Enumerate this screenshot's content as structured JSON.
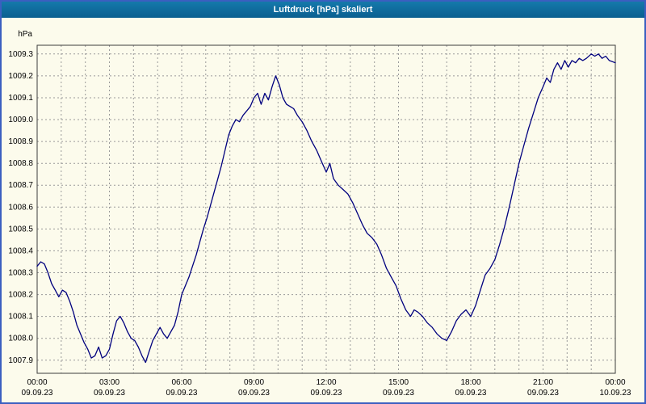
{
  "window": {
    "title": "Luftdruck [hPa] skaliert"
  },
  "colors": {
    "titlebar": "#0f6f9f",
    "window_border": "#3b5fc0",
    "background": "#fcfbec",
    "line": "#00007e",
    "grid": "#9a9a9a",
    "frame": "#3c3c3c",
    "text": "#000000"
  },
  "chart_data": {
    "type": "line",
    "title": "Luftdruck [hPa] skaliert",
    "xlabel": "",
    "ylabel": "hPa",
    "xlim": [
      0,
      24
    ],
    "ylim": [
      1007.84,
      1009.34
    ],
    "grid": true,
    "x_grid_step_hours": 1,
    "y_ticks": [
      1007.9,
      1008.0,
      1008.1,
      1008.2,
      1008.3,
      1008.4,
      1008.5,
      1008.6,
      1008.7,
      1008.8,
      1008.9,
      1009.0,
      1009.1,
      1009.2,
      1009.3
    ],
    "x_ticks": [
      {
        "hour": 0,
        "time": "00:00",
        "date": "09.09.23"
      },
      {
        "hour": 3,
        "time": "03:00",
        "date": "09.09.23"
      },
      {
        "hour": 6,
        "time": "06:00",
        "date": "09.09.23"
      },
      {
        "hour": 9,
        "time": "09:00",
        "date": "09.09.23"
      },
      {
        "hour": 12,
        "time": "12:00",
        "date": "09.09.23"
      },
      {
        "hour": 15,
        "time": "15:00",
        "date": "09.09.23"
      },
      {
        "hour": 18,
        "time": "18:00",
        "date": "09.09.23"
      },
      {
        "hour": 21,
        "time": "21:00",
        "date": "09.09.23"
      },
      {
        "hour": 24,
        "time": "00:00",
        "date": "10.09.23"
      }
    ],
    "series": [
      {
        "name": "Luftdruck",
        "unit": "hPa",
        "points": [
          [
            0.0,
            1008.33
          ],
          [
            0.15,
            1008.35
          ],
          [
            0.3,
            1008.34
          ],
          [
            0.45,
            1008.3
          ],
          [
            0.6,
            1008.25
          ],
          [
            0.75,
            1008.22
          ],
          [
            0.9,
            1008.19
          ],
          [
            1.05,
            1008.22
          ],
          [
            1.2,
            1008.21
          ],
          [
            1.35,
            1008.17
          ],
          [
            1.5,
            1008.12
          ],
          [
            1.65,
            1008.06
          ],
          [
            1.8,
            1008.02
          ],
          [
            1.95,
            1007.98
          ],
          [
            2.1,
            1007.95
          ],
          [
            2.25,
            1007.91
          ],
          [
            2.4,
            1007.92
          ],
          [
            2.55,
            1007.96
          ],
          [
            2.7,
            1007.91
          ],
          [
            2.85,
            1007.92
          ],
          [
            3.0,
            1007.95
          ],
          [
            3.15,
            1008.02
          ],
          [
            3.3,
            1008.08
          ],
          [
            3.45,
            1008.1
          ],
          [
            3.6,
            1008.07
          ],
          [
            3.75,
            1008.03
          ],
          [
            3.9,
            1008.0
          ],
          [
            4.05,
            1007.99
          ],
          [
            4.2,
            1007.96
          ],
          [
            4.35,
            1007.92
          ],
          [
            4.5,
            1007.89
          ],
          [
            4.65,
            1007.94
          ],
          [
            4.8,
            1007.99
          ],
          [
            4.95,
            1008.02
          ],
          [
            5.1,
            1008.05
          ],
          [
            5.25,
            1008.02
          ],
          [
            5.4,
            1008.0
          ],
          [
            5.55,
            1008.03
          ],
          [
            5.7,
            1008.06
          ],
          [
            5.85,
            1008.12
          ],
          [
            6.0,
            1008.2
          ],
          [
            6.15,
            1008.24
          ],
          [
            6.3,
            1008.28
          ],
          [
            6.45,
            1008.33
          ],
          [
            6.6,
            1008.38
          ],
          [
            6.75,
            1008.44
          ],
          [
            6.9,
            1008.5
          ],
          [
            7.05,
            1008.55
          ],
          [
            7.2,
            1008.61
          ],
          [
            7.35,
            1008.67
          ],
          [
            7.5,
            1008.73
          ],
          [
            7.65,
            1008.79
          ],
          [
            7.8,
            1008.86
          ],
          [
            7.95,
            1008.93
          ],
          [
            8.1,
            1008.97
          ],
          [
            8.25,
            1009.0
          ],
          [
            8.4,
            1008.99
          ],
          [
            8.55,
            1009.02
          ],
          [
            8.7,
            1009.04
          ],
          [
            8.85,
            1009.06
          ],
          [
            9.0,
            1009.1
          ],
          [
            9.15,
            1009.12
          ],
          [
            9.3,
            1009.07
          ],
          [
            9.45,
            1009.12
          ],
          [
            9.6,
            1009.09
          ],
          [
            9.75,
            1009.15
          ],
          [
            9.9,
            1009.2
          ],
          [
            10.05,
            1009.16
          ],
          [
            10.2,
            1009.1
          ],
          [
            10.35,
            1009.07
          ],
          [
            10.5,
            1009.06
          ],
          [
            10.65,
            1009.05
          ],
          [
            10.8,
            1009.02
          ],
          [
            11.0,
            1008.99
          ],
          [
            11.2,
            1008.95
          ],
          [
            11.4,
            1008.9
          ],
          [
            11.6,
            1008.86
          ],
          [
            11.8,
            1008.81
          ],
          [
            12.0,
            1008.76
          ],
          [
            12.15,
            1008.8
          ],
          [
            12.3,
            1008.73
          ],
          [
            12.5,
            1008.7
          ],
          [
            12.7,
            1008.68
          ],
          [
            12.9,
            1008.66
          ],
          [
            13.1,
            1008.62
          ],
          [
            13.3,
            1008.57
          ],
          [
            13.5,
            1008.52
          ],
          [
            13.7,
            1008.48
          ],
          [
            13.9,
            1008.46
          ],
          [
            14.1,
            1008.43
          ],
          [
            14.3,
            1008.38
          ],
          [
            14.5,
            1008.32
          ],
          [
            14.7,
            1008.28
          ],
          [
            14.9,
            1008.24
          ],
          [
            15.1,
            1008.18
          ],
          [
            15.3,
            1008.13
          ],
          [
            15.5,
            1008.1
          ],
          [
            15.65,
            1008.13
          ],
          [
            15.8,
            1008.12
          ],
          [
            16.0,
            1008.1
          ],
          [
            16.2,
            1008.07
          ],
          [
            16.4,
            1008.05
          ],
          [
            16.6,
            1008.02
          ],
          [
            16.8,
            1008.0
          ],
          [
            17.0,
            1007.99
          ],
          [
            17.2,
            1008.03
          ],
          [
            17.4,
            1008.08
          ],
          [
            17.6,
            1008.11
          ],
          [
            17.8,
            1008.13
          ],
          [
            18.0,
            1008.1
          ],
          [
            18.2,
            1008.15
          ],
          [
            18.4,
            1008.22
          ],
          [
            18.6,
            1008.29
          ],
          [
            18.8,
            1008.32
          ],
          [
            19.0,
            1008.36
          ],
          [
            19.2,
            1008.43
          ],
          [
            19.4,
            1008.51
          ],
          [
            19.6,
            1008.6
          ],
          [
            19.8,
            1008.7
          ],
          [
            20.0,
            1008.8
          ],
          [
            20.2,
            1008.88
          ],
          [
            20.4,
            1008.96
          ],
          [
            20.6,
            1009.03
          ],
          [
            20.8,
            1009.1
          ],
          [
            21.0,
            1009.15
          ],
          [
            21.15,
            1009.19
          ],
          [
            21.3,
            1009.17
          ],
          [
            21.45,
            1009.23
          ],
          [
            21.6,
            1009.26
          ],
          [
            21.75,
            1009.23
          ],
          [
            21.9,
            1009.27
          ],
          [
            22.05,
            1009.24
          ],
          [
            22.2,
            1009.27
          ],
          [
            22.35,
            1009.26
          ],
          [
            22.5,
            1009.28
          ],
          [
            22.65,
            1009.27
          ],
          [
            22.8,
            1009.28
          ],
          [
            23.0,
            1009.3
          ],
          [
            23.15,
            1009.29
          ],
          [
            23.3,
            1009.3
          ],
          [
            23.45,
            1009.28
          ],
          [
            23.6,
            1009.29
          ],
          [
            23.75,
            1009.27
          ],
          [
            24.0,
            1009.26
          ]
        ]
      }
    ]
  }
}
